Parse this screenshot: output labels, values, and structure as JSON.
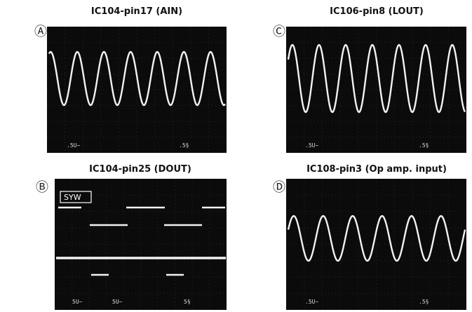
{
  "panels": [
    {
      "marker": "Ⓐ",
      "title": "IC104-pin17 (AIN)",
      "labels": [
        ".5U~",
        ".5§"
      ]
    },
    {
      "marker": "Ⓑ",
      "title": "IC104-pin25 (DOUT)",
      "tag": "SYW",
      "labels": [
        "5U~",
        "5U~",
        "5§"
      ]
    },
    {
      "marker": "Ⓒ",
      "title": "IC106-pin8 (LOUT)",
      "labels": [
        ".5U~",
        ".5§"
      ]
    },
    {
      "marker": "Ⓓ",
      "title": "IC108-pin3 (Op amp. input)",
      "labels": [
        ".5U~",
        ".5§"
      ]
    }
  ]
}
